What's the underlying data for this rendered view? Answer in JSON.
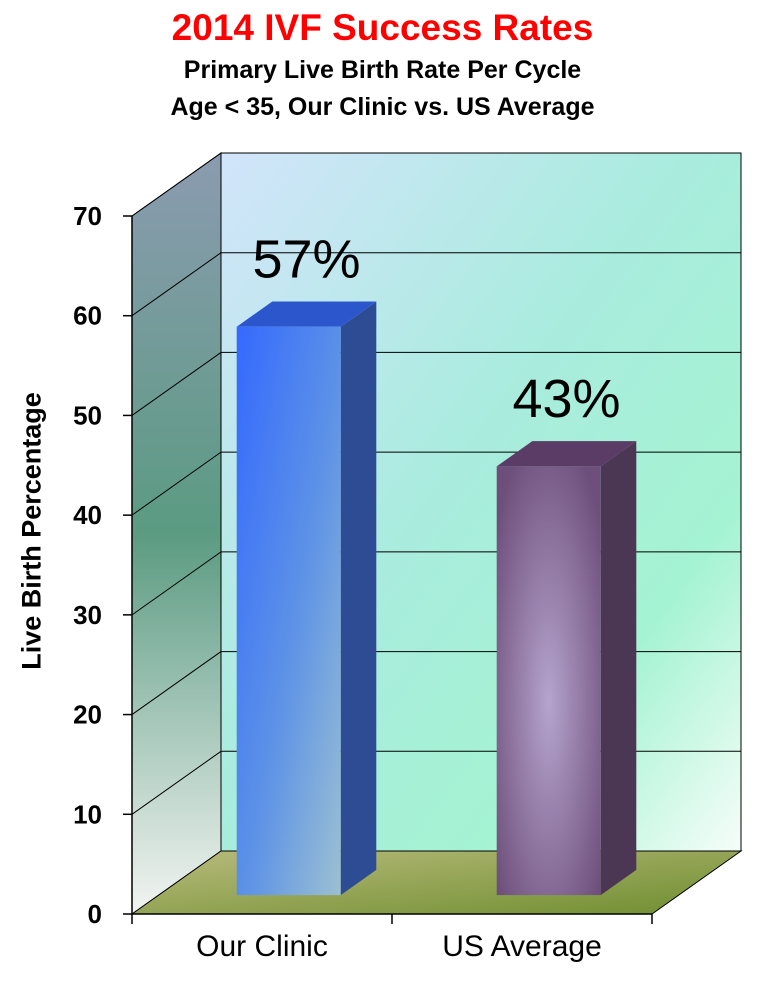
{
  "title": "2014 IVF Success Rates",
  "subtitle_line1": "Primary Live Birth Rate Per Cycle",
  "subtitle_line2": "Age <  35, Our Clinic vs. US Average",
  "chart_data": {
    "type": "bar",
    "title": "2014 IVF Success Rates",
    "subtitle": "Primary Live Birth Rate Per Cycle / Age <  35, Our Clinic vs. US Average",
    "categories": [
      "Our Clinic",
      "US Average"
    ],
    "values": [
      57,
      43
    ],
    "data_labels": [
      "57%",
      "43%"
    ],
    "ylabel": "Live Birth Percentage",
    "xlabel": "",
    "ylim": [
      0,
      70
    ],
    "yticks": [
      0,
      10,
      20,
      30,
      40,
      50,
      60,
      70
    ],
    "grid": true,
    "style": "3d",
    "colors": [
      "#3366ff",
      "#7a5a86"
    ]
  }
}
